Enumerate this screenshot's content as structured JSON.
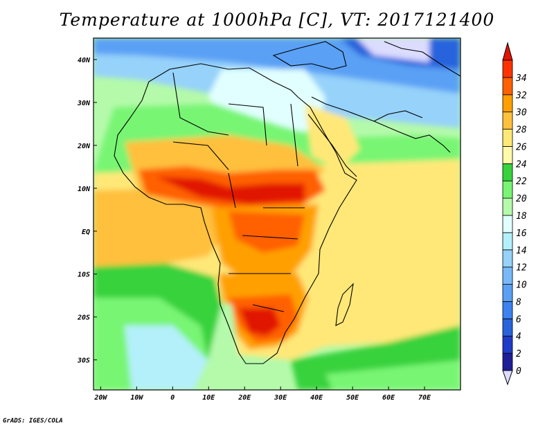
{
  "title": "Temperature at 1000hPa [C], VT: 2017121400",
  "credit": "GrADS: IGES/COLA",
  "map": {
    "lon_range": [
      -22,
      80
    ],
    "lat_range": [
      -37,
      45
    ],
    "lon_ticks": [
      {
        "value": -20,
        "label": "20W"
      },
      {
        "value": -10,
        "label": "10W"
      },
      {
        "value": 0,
        "label": "0"
      },
      {
        "value": 10,
        "label": "10E"
      },
      {
        "value": 20,
        "label": "20E"
      },
      {
        "value": 30,
        "label": "30E"
      },
      {
        "value": 40,
        "label": "40E"
      },
      {
        "value": 50,
        "label": "50E"
      },
      {
        "value": 60,
        "label": "60E"
      },
      {
        "value": 70,
        "label": "70E"
      }
    ],
    "lat_ticks": [
      {
        "value": 40,
        "label": "40N"
      },
      {
        "value": 30,
        "label": "30N"
      },
      {
        "value": 20,
        "label": "20N"
      },
      {
        "value": 10,
        "label": "10N"
      },
      {
        "value": 0,
        "label": "EQ"
      },
      {
        "value": -10,
        "label": "10S"
      },
      {
        "value": -20,
        "label": "20S"
      },
      {
        "value": -30,
        "label": "30S"
      }
    ]
  },
  "colorbar": {
    "levels": [
      "0",
      "2",
      "4",
      "6",
      "8",
      "10",
      "12",
      "14",
      "16",
      "18",
      "20",
      "22",
      "24",
      "26",
      "28",
      "30",
      "32",
      "34"
    ],
    "colors": [
      "#1e1e96",
      "#1e3cc8",
      "#2864dc",
      "#3c82f0",
      "#5aa0f5",
      "#78b9fa",
      "#96d2fa",
      "#b4f0fa",
      "#e1ffff",
      "#b4faaa",
      "#78f573",
      "#37d23c",
      "#fffaaa",
      "#ffe878",
      "#ffc03c",
      "#ffa000",
      "#ff6000",
      "#ff3200"
    ],
    "under_color": "#dcdcff",
    "over_color": "#e11400"
  }
}
